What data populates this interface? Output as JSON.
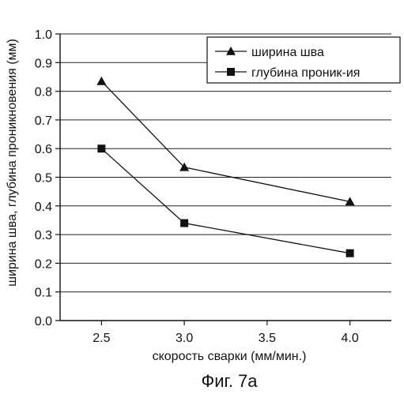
{
  "chart_data": {
    "type": "line",
    "x_ticks": [
      "2.5",
      "3.0",
      "3.5",
      "4.0"
    ],
    "y_ticks": [
      "0.0",
      "0.1",
      "0.2",
      "0.3",
      "0.4",
      "0.5",
      "0.6",
      "0.7",
      "0.8",
      "0.9",
      "1.0"
    ],
    "xlim": [
      2.5,
      4.0
    ],
    "ylim": [
      0.0,
      1.0
    ],
    "xlabel": "скорость сварки (мм/мин.)",
    "ylabel": "ширина шва, глубина проникновения (мм)",
    "grid": "horizontal",
    "legend_position": "top-right",
    "series": [
      {
        "name": "ширина шва",
        "marker": "triangle",
        "x": [
          2.5,
          3.0,
          4.0
        ],
        "y": [
          0.835,
          0.535,
          0.415
        ]
      },
      {
        "name": "глубина проник-ия",
        "marker": "square",
        "x": [
          2.5,
          3.0,
          4.0
        ],
        "y": [
          0.6,
          0.34,
          0.235
        ]
      }
    ]
  },
  "caption": "Фиг. 7а"
}
